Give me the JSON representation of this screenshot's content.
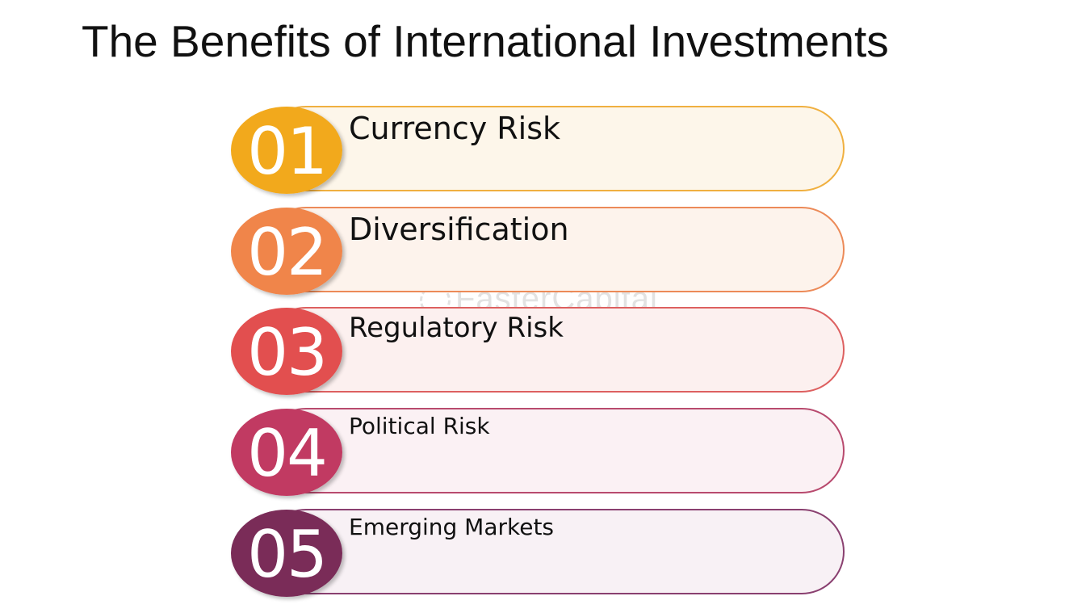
{
  "title": "The Benefits of International Investments",
  "watermark": "FasterCapital",
  "items": [
    {
      "number": "01",
      "label": "Currency Risk",
      "color": "#f2a91c",
      "light": "#fdf6ea",
      "border": "#f0b040"
    },
    {
      "number": "02",
      "label": "Diversification",
      "color": "#f0854a",
      "light": "#fdf3ec",
      "border": "#ec8a58"
    },
    {
      "number": "03",
      "label": "Regulatory Risk",
      "color": "#e24f4f",
      "light": "#fcf0ef",
      "border": "#dd6060"
    },
    {
      "number": "04",
      "label": "Political Risk",
      "color": "#c13a62",
      "light": "#fbf1f4",
      "border": "#b84a6e"
    },
    {
      "number": "05",
      "label": "Emerging Markets",
      "color": "#7a2c58",
      "light": "#f8f1f5",
      "border": "#8a4070"
    }
  ]
}
